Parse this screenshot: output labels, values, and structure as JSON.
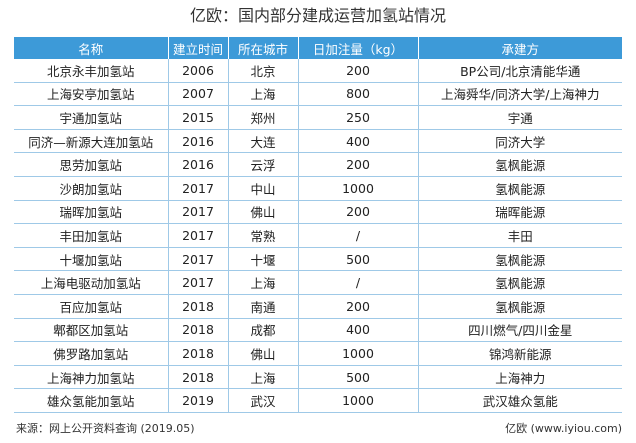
{
  "title": "亿欧：国内部分建成运营加氢站情况",
  "table": {
    "headers": [
      "名称",
      "建立时间",
      "所在城市",
      "日加注量（kg）",
      "承建方"
    ],
    "rows": [
      [
        "北京永丰加氢站",
        "2006",
        "北京",
        "200",
        "BP公司/北京清能华通"
      ],
      [
        "上海安亭加氢站",
        "2007",
        "上海",
        "800",
        "上海舜华/同济大学/上海神力"
      ],
      [
        "宇通加氢站",
        "2015",
        "郑州",
        "250",
        "宇通"
      ],
      [
        "同济—新源大连加氢站",
        "2016",
        "大连",
        "400",
        "同济大学"
      ],
      [
        "思劳加氢站",
        "2016",
        "云浮",
        "200",
        "氢枫能源"
      ],
      [
        "沙朗加氢站",
        "2017",
        "中山",
        "1000",
        "氢枫能源"
      ],
      [
        "瑞晖加氢站",
        "2017",
        "佛山",
        "200",
        "瑞晖能源"
      ],
      [
        "丰田加氢站",
        "2017",
        "常熟",
        "/",
        "丰田"
      ],
      [
        "十堰加氢站",
        "2017",
        "十堰",
        "500",
        "氢枫能源"
      ],
      [
        "上海电驱动加氢站",
        "2017",
        "上海",
        "/",
        "氢枫能源"
      ],
      [
        "百应加氢站",
        "2018",
        "南通",
        "200",
        "氢枫能源"
      ],
      [
        "郫都区加氢站",
        "2018",
        "成都",
        "400",
        "四川燃气/四川金星"
      ],
      [
        "佛罗路加氢站",
        "2018",
        "佛山",
        "1000",
        "锦鸿新能源"
      ],
      [
        "上海神力加氢站",
        "2018",
        "上海",
        "500",
        "上海神力"
      ],
      [
        "雄众氢能加氢站",
        "2019",
        "武汉",
        "1000",
        "武汉雄众氢能"
      ]
    ]
  },
  "footer": {
    "source": "来源：网上公开资料查询    (2019.05)",
    "brand": "亿欧  (www.iyiou.com)"
  },
  "colors": {
    "header_bg": "#3d9ad8",
    "grid_line": "#9fc9e7"
  }
}
